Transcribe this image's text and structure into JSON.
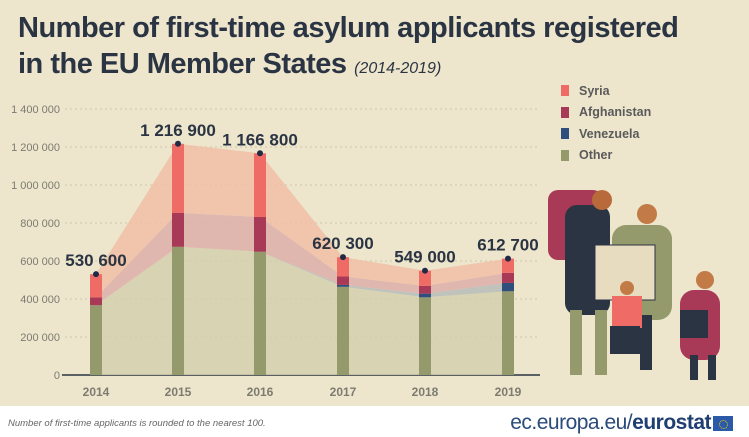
{
  "title": "Number of first-time asylum applicants registered",
  "title2": "in the EU Member States",
  "subtitle": "(2014-2019)",
  "footnote": "Number of first-time applicants is rounded  to the nearest 100.",
  "logo": {
    "domain": "ec.europa.eu/",
    "brand": "eurostat"
  },
  "chart_data": {
    "type": "bar",
    "stacked": true,
    "categories": [
      "2014",
      "2015",
      "2016",
      "2017",
      "2018",
      "2019"
    ],
    "totals": [
      530600,
      1216900,
      1166800,
      620300,
      549000,
      612700
    ],
    "total_labels": [
      "530 600",
      "1 216 900",
      "1 166 800",
      "620 300",
      "549 000",
      "612 700"
    ],
    "series": [
      {
        "name": "Other",
        "color": "#959a6c",
        "values": [
          367600,
          674900,
          648800,
          464300,
          409000,
          440700
        ]
      },
      {
        "name": "Venezuela",
        "color": "#2e4f7e",
        "values": [
          0,
          0,
          0,
          10000,
          19000,
          44000
        ]
      },
      {
        "name": "Afghanistan",
        "color": "#a93a57",
        "values": [
          41000,
          179000,
          183000,
          44000,
          41000,
          53000
        ]
      },
      {
        "name": "Syria",
        "color": "#ef6b66",
        "values": [
          122000,
          363000,
          335000,
          102000,
          80000,
          75000
        ]
      }
    ],
    "legend_order": [
      "Syria",
      "Afghanistan",
      "Venezuela",
      "Other"
    ],
    "legend_colors": [
      "#ef6b66",
      "#a93a57",
      "#2e4f7e",
      "#959a6c"
    ],
    "legend_position": "right",
    "yticks": [
      0,
      200000,
      400000,
      600000,
      800000,
      1000000,
      1200000,
      1400000
    ],
    "ytick_labels": [
      "0",
      "200 000",
      "400 000",
      "600 000",
      "800 000",
      "1 000 000",
      "1 200 000",
      "1 400 000"
    ],
    "ylim": [
      0,
      1400000
    ],
    "grid": true
  }
}
